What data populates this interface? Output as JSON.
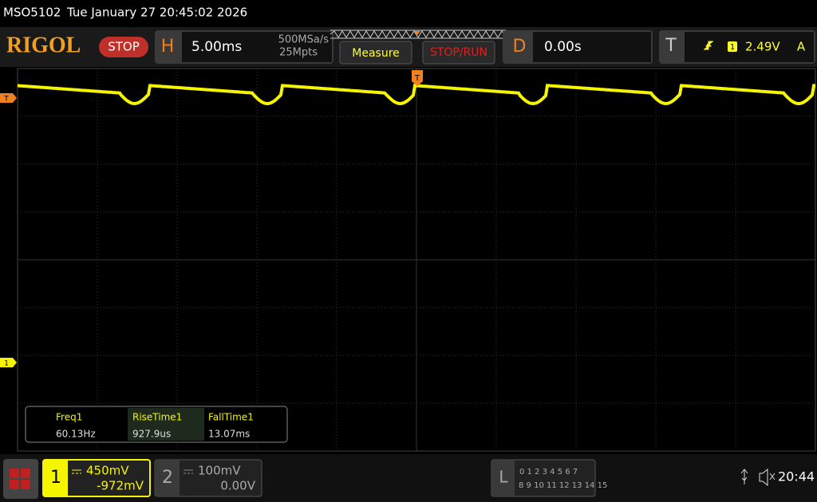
{
  "header": {
    "model": "MSO5102",
    "datetime": "Tue January 27 20:45:02 2026"
  },
  "toolbar": {
    "logo": "RIGOL",
    "run_state": "STOP",
    "horizontal": {
      "key": "H",
      "timebase": "5.00ms",
      "sample_rate": "500MSa/s",
      "memory_depth": "25Mpts"
    },
    "buttons": [
      "Measure",
      "STOP/RUN"
    ],
    "delay": {
      "key": "D",
      "value": "0.00s"
    },
    "trigger": {
      "key": "T",
      "source": "1",
      "level": "2.49V",
      "mode": "A"
    }
  },
  "markers": {
    "trigger_level": "T",
    "channel1": "1",
    "trigger_position": "T"
  },
  "measurements": {
    "headers": [
      "Freq1",
      "RiseTime1",
      "FallTime1"
    ],
    "values": [
      "60.13Hz",
      "927.9us",
      "13.07ms"
    ]
  },
  "channels": [
    {
      "number": "1",
      "scale": "450mV",
      "offset": "-972mV"
    },
    {
      "number": "2",
      "scale": "100mV",
      "offset": "0.00V"
    }
  ],
  "logic": {
    "key": "L",
    "row1": "0 1 2 3  4 5 6 7",
    "row2": "8 9 10 11 12 13 14 15"
  },
  "status": {
    "time": "20:44"
  }
}
